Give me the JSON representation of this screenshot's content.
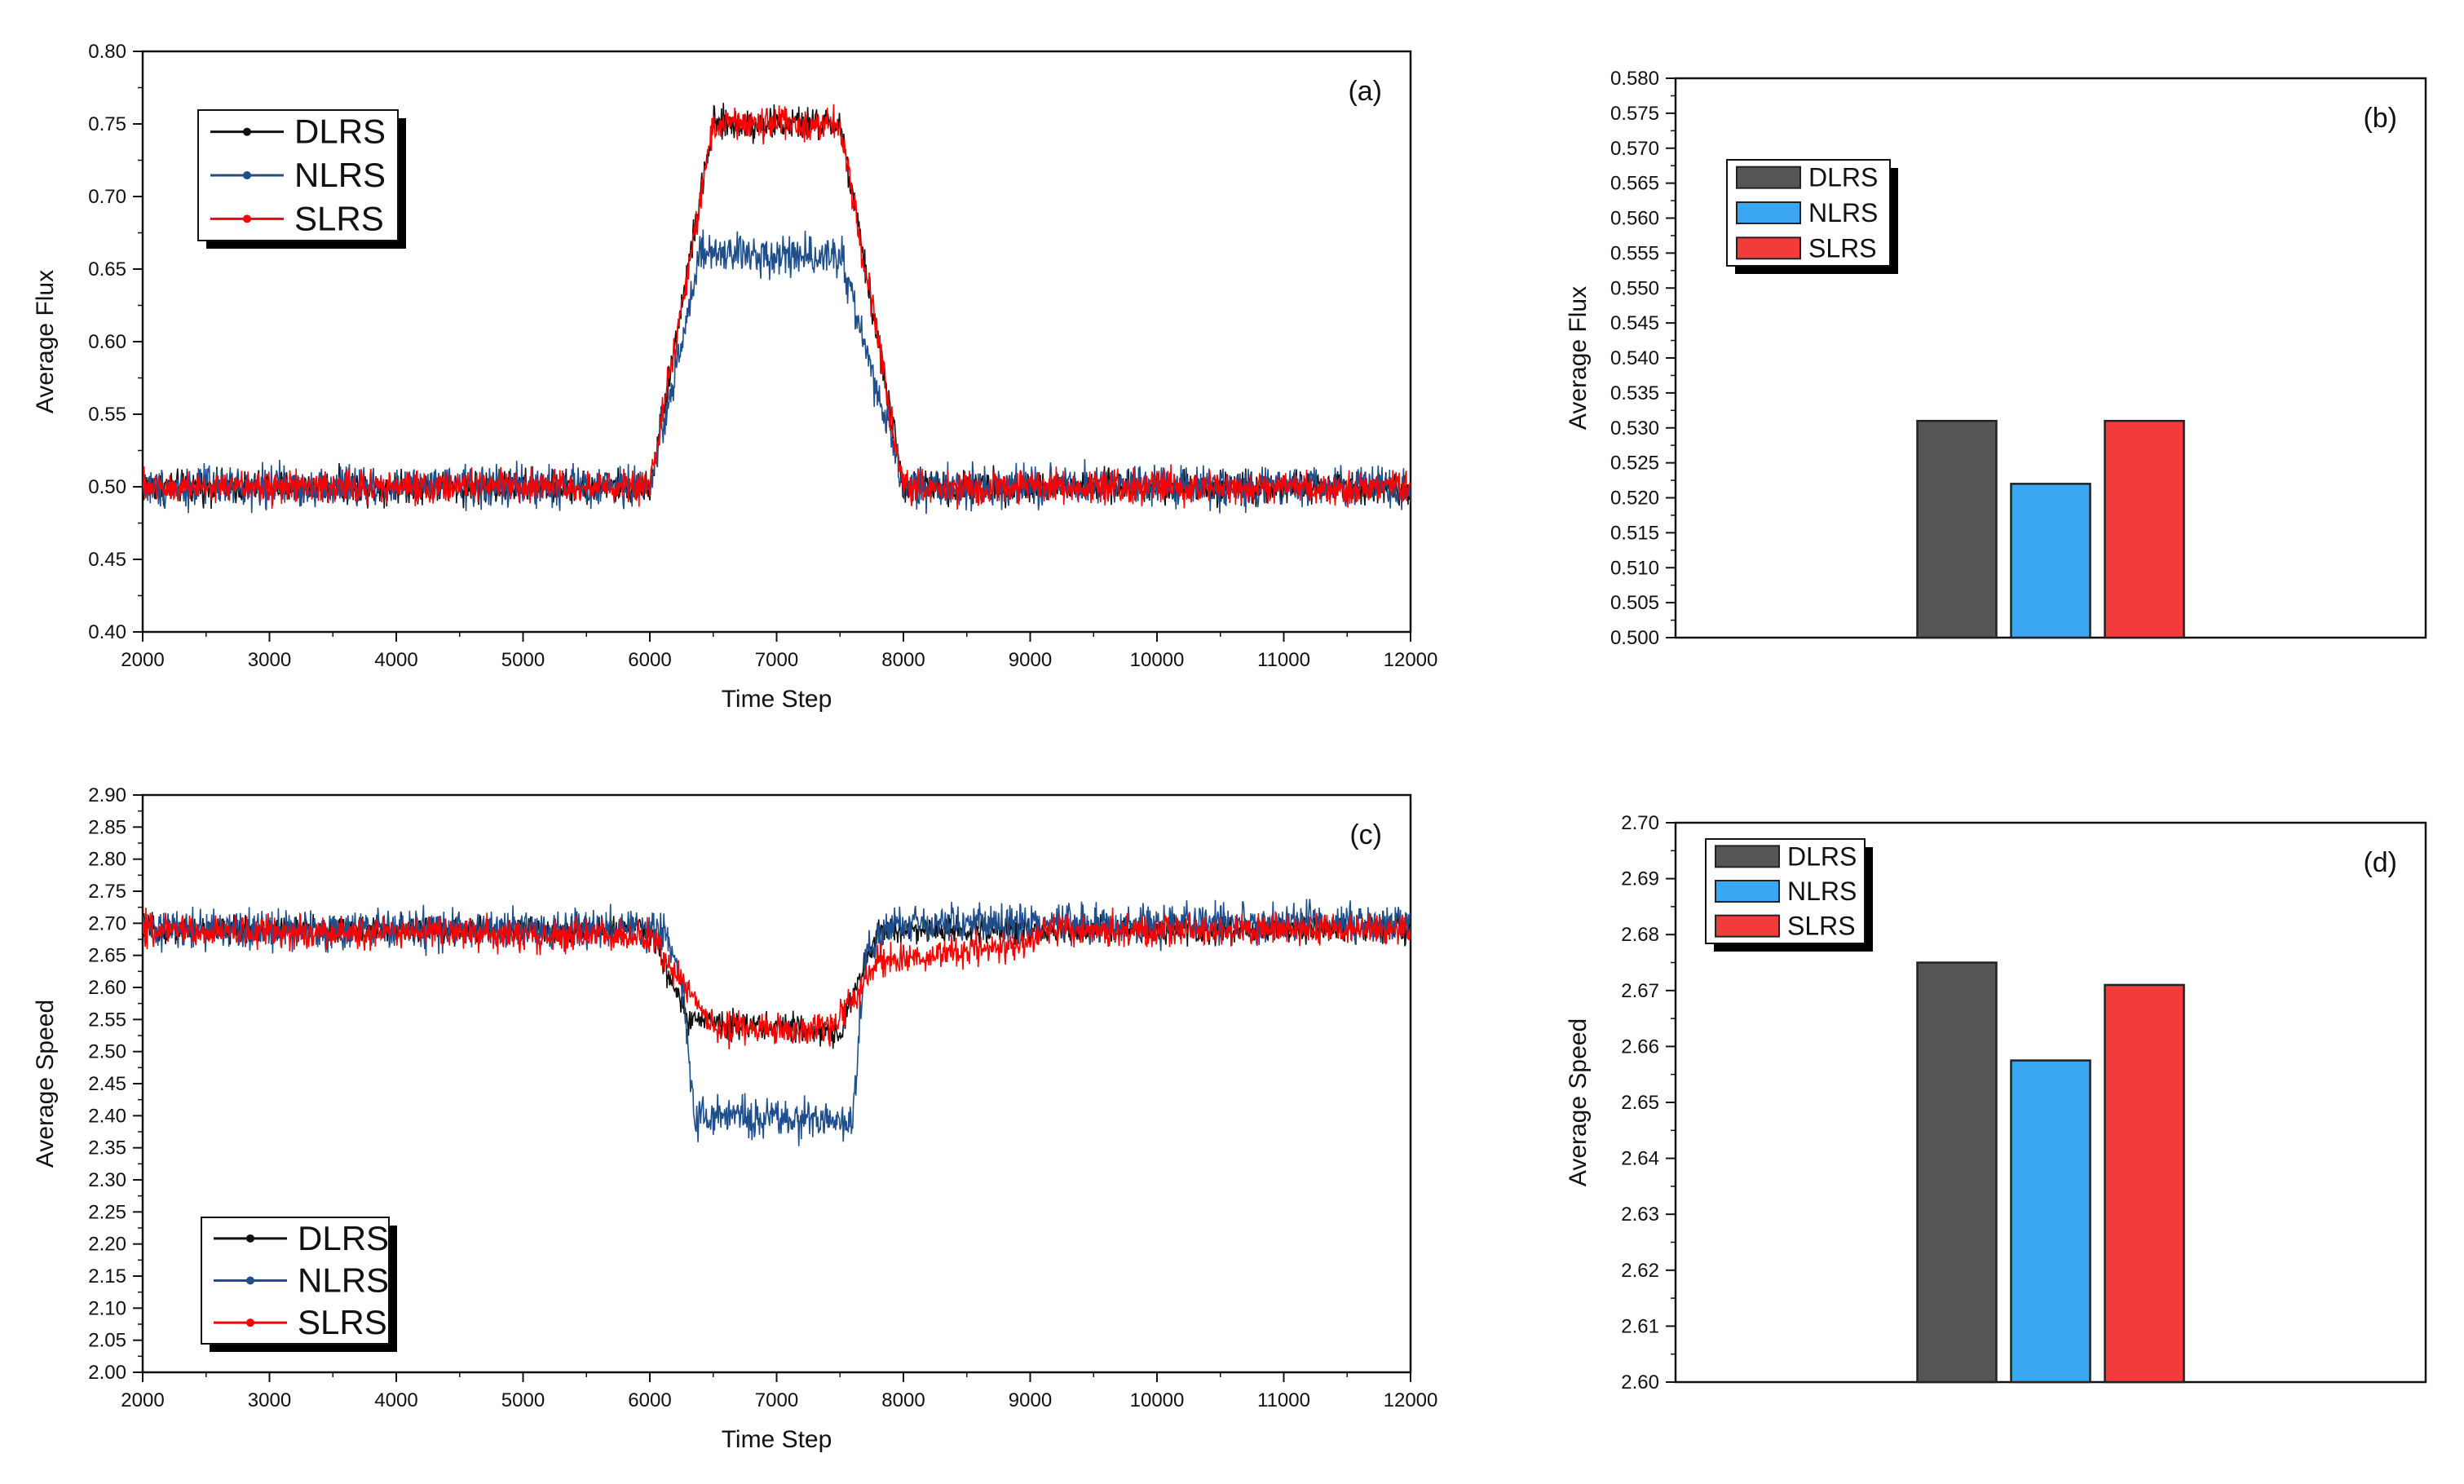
{
  "colors": {
    "DLRS_line": "#111111",
    "NLRS_line": "#1f4e8c",
    "SLRS_line": "#ff0000",
    "DLRS_bar": "#555555",
    "NLRS_bar": "#3aa7f2",
    "SLRS_bar": "#f23c3c"
  },
  "chart_data": [
    {
      "id": "a",
      "type": "line",
      "panel_label": "(a)",
      "xlabel": "Time Step",
      "ylabel": "Average Flux",
      "xlim": [
        2000,
        12000
      ],
      "ylim": [
        0.4,
        0.8
      ],
      "xticks": [
        2000,
        3000,
        4000,
        5000,
        6000,
        7000,
        8000,
        9000,
        10000,
        11000,
        12000
      ],
      "yticks": [
        0.4,
        0.45,
        0.5,
        0.55,
        0.6,
        0.65,
        0.7,
        0.75,
        0.8
      ],
      "ytick_decimals": 2,
      "legend_position": "top-left",
      "series": [
        {
          "name": "DLRS",
          "color_key": "DLRS_line",
          "noise": 0.008,
          "profile": [
            [
              2000,
              0.5
            ],
            [
              6000,
              0.5
            ],
            [
              6500,
              0.75
            ],
            [
              7500,
              0.75
            ],
            [
              8000,
              0.5
            ],
            [
              12000,
              0.5
            ]
          ]
        },
        {
          "name": "NLRS",
          "color_key": "NLRS_line",
          "noise": 0.01,
          "profile": [
            [
              2000,
              0.5
            ],
            [
              6000,
              0.5
            ],
            [
              6400,
              0.66
            ],
            [
              7500,
              0.66
            ],
            [
              8000,
              0.5
            ],
            [
              12000,
              0.5
            ]
          ]
        },
        {
          "name": "SLRS",
          "color_key": "SLRS_line",
          "noise": 0.008,
          "profile": [
            [
              2000,
              0.5
            ],
            [
              6000,
              0.5
            ],
            [
              6500,
              0.75
            ],
            [
              7500,
              0.75
            ],
            [
              8000,
              0.5
            ],
            [
              12000,
              0.5
            ]
          ]
        }
      ]
    },
    {
      "id": "b",
      "type": "bar",
      "panel_label": "(b)",
      "xlabel": "",
      "ylabel": "Average Flux",
      "ylim": [
        0.5,
        0.58
      ],
      "yticks": [
        0.5,
        0.505,
        0.51,
        0.515,
        0.52,
        0.525,
        0.53,
        0.535,
        0.54,
        0.545,
        0.55,
        0.555,
        0.56,
        0.565,
        0.57,
        0.575,
        0.58
      ],
      "ytick_decimals": 3,
      "legend_position": "top-left",
      "categories": [
        "DLRS",
        "NLRS",
        "SLRS"
      ],
      "color_keys": [
        "DLRS_bar",
        "NLRS_bar",
        "SLRS_bar"
      ],
      "values": [
        0.531,
        0.522,
        0.531
      ]
    },
    {
      "id": "c",
      "type": "line",
      "panel_label": "(c)",
      "xlabel": "Time Step",
      "ylabel": "Average Speed",
      "xlim": [
        2000,
        12000
      ],
      "ylim": [
        2.0,
        2.9
      ],
      "xticks": [
        2000,
        3000,
        4000,
        5000,
        6000,
        7000,
        8000,
        9000,
        10000,
        11000,
        12000
      ],
      "yticks": [
        2.0,
        2.05,
        2.1,
        2.15,
        2.2,
        2.25,
        2.3,
        2.35,
        2.4,
        2.45,
        2.5,
        2.55,
        2.6,
        2.65,
        2.7,
        2.75,
        2.8,
        2.85,
        2.9
      ],
      "ytick_decimals": 2,
      "legend_position": "bottom-left",
      "series": [
        {
          "name": "DLRS",
          "color_key": "DLRS_line",
          "noise": 0.015,
          "profile": [
            [
              2000,
              2.69
            ],
            [
              6000,
              2.69
            ],
            [
              6300,
              2.55
            ],
            [
              7500,
              2.53
            ],
            [
              7800,
              2.69
            ],
            [
              12000,
              2.69
            ]
          ]
        },
        {
          "name": "NLRS",
          "color_key": "NLRS_line",
          "noise": 0.022,
          "profile": [
            [
              2000,
              2.69
            ],
            [
              6100,
              2.69
            ],
            [
              6250,
              2.62
            ],
            [
              6350,
              2.4
            ],
            [
              7600,
              2.39
            ],
            [
              7700,
              2.66
            ],
            [
              7900,
              2.7
            ],
            [
              12000,
              2.7
            ]
          ]
        },
        {
          "name": "SLRS",
          "color_key": "SLRS_line",
          "noise": 0.018,
          "profile": [
            [
              2000,
              2.69
            ],
            [
              6000,
              2.68
            ],
            [
              6500,
              2.54
            ],
            [
              7400,
              2.53
            ],
            [
              7800,
              2.64
            ],
            [
              9000,
              2.67
            ],
            [
              9100,
              2.69
            ],
            [
              12000,
              2.69
            ]
          ]
        }
      ]
    },
    {
      "id": "d",
      "type": "bar",
      "panel_label": "(d)",
      "xlabel": "",
      "ylabel": "Average Speed",
      "ylim": [
        2.6,
        2.7
      ],
      "yticks": [
        2.6,
        2.61,
        2.62,
        2.63,
        2.64,
        2.65,
        2.66,
        2.67,
        2.68,
        2.69,
        2.7
      ],
      "ytick_decimals": 2,
      "legend_position": "top-left",
      "categories": [
        "DLRS",
        "NLRS",
        "SLRS"
      ],
      "color_keys": [
        "DLRS_bar",
        "NLRS_bar",
        "SLRS_bar"
      ],
      "values": [
        2.675,
        2.6575,
        2.671
      ]
    }
  ]
}
